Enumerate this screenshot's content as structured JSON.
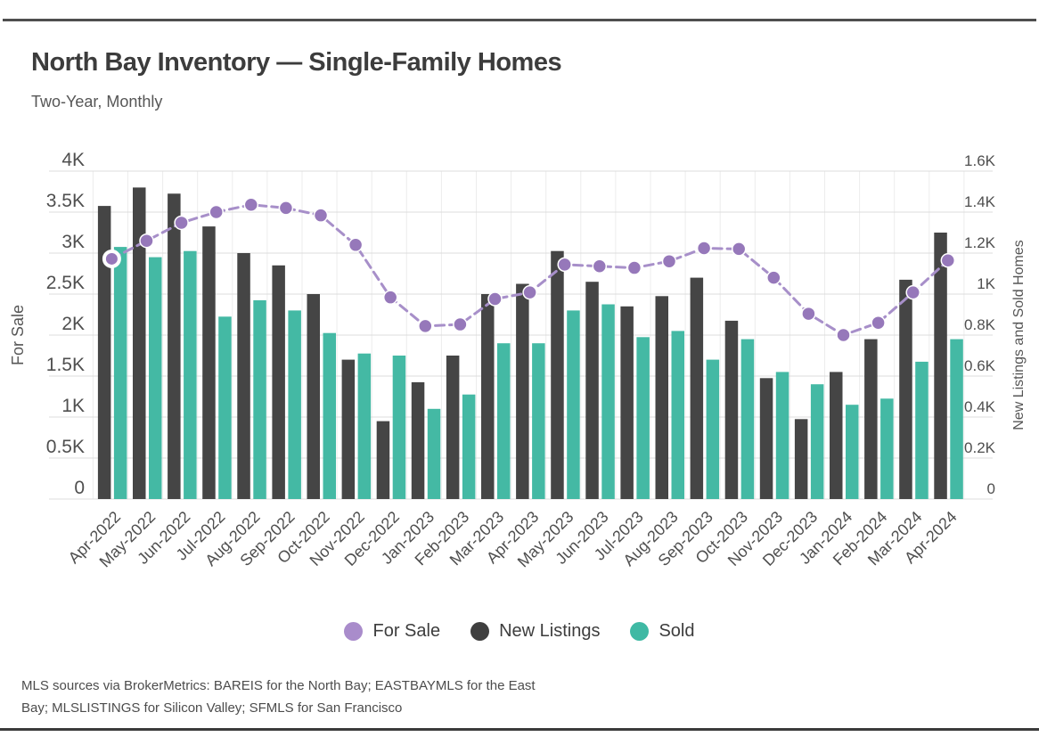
{
  "header": {
    "title": "North Bay Inventory — Single-Family Homes",
    "subtitle": "Two-Year, Monthly"
  },
  "legend": {
    "items": [
      {
        "label": "For Sale",
        "color": "#A98CCB"
      },
      {
        "label": "New Listings",
        "color": "#3F3F3F"
      },
      {
        "label": "Sold",
        "color": "#3FB9A4"
      }
    ]
  },
  "footer": {
    "line1": "MLS sources via BrokerMetrics: BAREIS for the North Bay; EASTBAYMLS for the East",
    "line2": "Bay; MLSLISTINGS for Silicon Valley; SFMLS for San Francisco"
  },
  "chart_data": {
    "type": "bar",
    "title": "North Bay Inventory — Single-Family Homes",
    "subtitle": "Two-Year, Monthly",
    "grid": true,
    "legend_position": "bottom",
    "categories": [
      "Apr-2022",
      "May-2022",
      "Jun-2022",
      "Jul-2022",
      "Aug-2022",
      "Sep-2022",
      "Oct-2022",
      "Nov-2022",
      "Dec-2022",
      "Jan-2023",
      "Feb-2023",
      "Mar-2023",
      "Apr-2023",
      "May-2023",
      "Jun-2023",
      "Jul-2023",
      "Aug-2023",
      "Sep-2023",
      "Oct-2023",
      "Nov-2023",
      "Dec-2023",
      "Jan-2024",
      "Feb-2024",
      "Mar-2024",
      "Apr-2024"
    ],
    "series": [
      {
        "name": "For Sale",
        "type": "line",
        "axis": "left",
        "color": "#A78FC9",
        "marker_color": "#9678BA",
        "values": [
          2930,
          3150,
          3370,
          3500,
          3590,
          3550,
          3460,
          3100,
          2460,
          2110,
          2130,
          2440,
          2520,
          2860,
          2840,
          2820,
          2900,
          3060,
          3050,
          2700,
          2260,
          2000,
          2150,
          2520,
          2910
        ]
      },
      {
        "name": "New Listings",
        "type": "bar",
        "axis": "right",
        "color": "#454545",
        "values": [
          1430,
          1520,
          1490,
          1330,
          1200,
          1140,
          1000,
          680,
          380,
          570,
          700,
          1000,
          1050,
          1210,
          1060,
          940,
          990,
          1080,
          870,
          590,
          390,
          620,
          780,
          1070,
          1300
        ]
      },
      {
        "name": "Sold",
        "type": "bar",
        "axis": "right",
        "color": "#44B9A4",
        "values": [
          1230,
          1180,
          1210,
          890,
          970,
          920,
          810,
          710,
          700,
          440,
          510,
          760,
          760,
          920,
          950,
          790,
          820,
          680,
          780,
          620,
          560,
          460,
          490,
          670,
          780
        ]
      }
    ],
    "left_axis": {
      "label": "For Sale",
      "min": 0,
      "max": 4000,
      "tick_step": 500,
      "tick_labels_top_to_bottom": [
        "4K",
        "3.5K",
        "3K",
        "2.5K",
        "2K",
        "1.5K",
        "1K",
        "0.5K",
        "0"
      ]
    },
    "right_axis": {
      "label": "New Listings and Sold Homes",
      "min": 0,
      "max": 1600,
      "tick_step": 200,
      "tick_labels_top_to_bottom": [
        "1.6K",
        "1.4K",
        "1.2K",
        "1K",
        "0.8K",
        "0.6K",
        "0.4K",
        "0.2K",
        "0"
      ]
    }
  },
  "style": {
    "grid_color": "#DCDCDC",
    "separator_color": "#ECECEC",
    "tick_label_color": "#4F4F4F",
    "axis_title_color": "#565656"
  }
}
